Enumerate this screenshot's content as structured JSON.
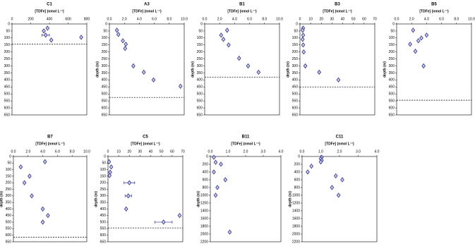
{
  "chart_data": [
    {
      "type": "scatter",
      "title": "C1",
      "x_label": "[TDFe] (nmol L⁻¹)",
      "color": "#2e3192",
      "x": [
        380,
        340,
        360,
        420,
        740
      ],
      "y": [
        30,
        50,
        80,
        115,
        95
      ],
      "xerr": [
        null,
        null,
        40,
        null,
        null
      ],
      "xlim": [
        0,
        800
      ],
      "xticks": [
        0,
        200,
        400,
        600,
        800
      ],
      "ylim": [
        0,
        650
      ],
      "yticks": [
        0,
        50,
        100,
        150,
        200,
        250,
        300,
        350,
        400,
        450,
        500,
        550,
        600,
        650
      ],
      "y_inverted": true,
      "reference_line": 145
    },
    {
      "type": "scatter",
      "title": "A3",
      "x_label": "[TDFe] (nmol L⁻¹)",
      "y_label": "depth (m)",
      "color": "#2e3192",
      "x": [
        1.0,
        1.2,
        1.8,
        2.2,
        2.1,
        3.2,
        4.6,
        5.9,
        9.5
      ],
      "y": [
        45,
        75,
        120,
        145,
        175,
        300,
        345,
        400,
        445
      ],
      "xerr": [
        null,
        null,
        null,
        null,
        null,
        null,
        null,
        null,
        null
      ],
      "xlim": [
        0,
        10
      ],
      "xticks": [
        {
          "value": 0,
          "label": "0.0"
        },
        {
          "value": 2,
          "label": "2.0"
        },
        {
          "value": 4,
          "label": "4.0"
        },
        {
          "value": 6,
          "label": "6.0"
        },
        {
          "value": 8,
          "label": "8.0"
        },
        {
          "value": 10,
          "label": "10.0"
        }
      ],
      "ylim": [
        0,
        650
      ],
      "yticks": [
        0,
        50,
        100,
        150,
        200,
        250,
        300,
        350,
        400,
        450,
        500,
        550,
        600,
        650
      ],
      "y_inverted": true,
      "reference_line": 525
    },
    {
      "type": "scatter",
      "title": "B1",
      "x_label": "[TDFe] (nmol L⁻¹)",
      "y_label": "depth (m)",
      "color": "#2e3192",
      "x": [
        3.0,
        2.2,
        2.5,
        3.2,
        4.6,
        5.8,
        7.2
      ],
      "y": [
        45,
        80,
        110,
        150,
        245,
        300,
        345
      ],
      "xerr": [
        null,
        null,
        null,
        null,
        null,
        null,
        null
      ],
      "xlim": [
        0,
        10
      ],
      "xticks": [
        {
          "value": 0,
          "label": "0.0"
        },
        {
          "value": 2,
          "label": "2.0"
        },
        {
          "value": 4,
          "label": "4.0"
        },
        {
          "value": 6,
          "label": "6.0"
        },
        {
          "value": 8,
          "label": "8.0"
        },
        {
          "value": 10,
          "label": "10.0"
        }
      ],
      "ylim": [
        0,
        650
      ],
      "yticks": [
        0,
        50,
        100,
        150,
        200,
        250,
        300,
        350,
        400,
        450,
        500,
        550,
        600,
        650
      ],
      "y_inverted": true,
      "reference_line": 380
    },
    {
      "type": "scatter",
      "title": "B3",
      "x_label": "[TDFe] (nmol L⁻¹)",
      "y_label": "depth (m)",
      "color": "#2e3192",
      "x": [
        3,
        2.5,
        3,
        2.5,
        3,
        3.5,
        5,
        18,
        36
      ],
      "y": [
        30,
        45,
        80,
        110,
        150,
        200,
        300,
        345,
        400
      ],
      "xerr": [
        null,
        null,
        null,
        null,
        null,
        null,
        null,
        null,
        null
      ],
      "xlim": [
        0,
        70
      ],
      "xticks": [
        0,
        10,
        20,
        30,
        40,
        50,
        60,
        70
      ],
      "ylim": [
        0,
        650
      ],
      "yticks": [
        0,
        50,
        100,
        150,
        200,
        250,
        300,
        350,
        400,
        450,
        500,
        550,
        600,
        650
      ],
      "y_inverted": true,
      "reference_line": 450
    },
    {
      "type": "scatter",
      "title": "B5",
      "x_label": "[TDFe] (nmol L⁻¹)",
      "y_label": "depth (m)",
      "color": "#2e3192",
      "x": [
        2.2,
        4.0,
        3.3,
        2.9,
        1.8,
        2.5,
        3.6
      ],
      "y": [
        45,
        80,
        100,
        120,
        145,
        195,
        300
      ],
      "xerr": [
        null,
        null,
        null,
        null,
        null,
        null,
        null
      ],
      "xlim": [
        0,
        10
      ],
      "xticks": [
        {
          "value": 0,
          "label": "0.0"
        },
        {
          "value": 2,
          "label": "2.0"
        },
        {
          "value": 4,
          "label": "4.0"
        },
        {
          "value": 6,
          "label": "6.0"
        },
        {
          "value": 8,
          "label": "8.0"
        },
        {
          "value": 10,
          "label": "10.0"
        }
      ],
      "ylim": [
        0,
        650
      ],
      "yticks": [
        0,
        50,
        100,
        150,
        200,
        250,
        300,
        350,
        400,
        450,
        500,
        550,
        600,
        650
      ],
      "y_inverted": true,
      "reference_line": 545
    },
    {
      "type": "scatter",
      "title": "B7",
      "x_label": "[TDFe] (nmol L⁻¹)",
      "y_label": "depth (m)",
      "color": "#2e3192",
      "x": [
        1.0,
        4.3,
        2.2,
        1.5,
        2.5,
        4.0,
        4.7,
        4.0
      ],
      "y": [
        80,
        40,
        150,
        200,
        300,
        400,
        450,
        500
      ],
      "xerr": [
        null,
        null,
        null,
        null,
        null,
        null,
        null,
        null
      ],
      "xlim": [
        0,
        10
      ],
      "xticks": [
        {
          "value": 0,
          "label": "0.0"
        },
        {
          "value": 2,
          "label": "2.0"
        },
        {
          "value": 4,
          "label": "4.0"
        },
        {
          "value": 6,
          "label": "6.0"
        },
        {
          "value": 8,
          "label": "8.0"
        },
        {
          "value": 10,
          "label": "10.0"
        }
      ],
      "ylim": [
        0,
        650
      ],
      "yticks": [
        0,
        50,
        100,
        150,
        200,
        250,
        300,
        350,
        400,
        450,
        500,
        550,
        600,
        650
      ],
      "y_inverted": true,
      "reference_line": 615
    },
    {
      "type": "scatter",
      "title": "C5",
      "x_label": "[TDFe] (nmol L⁻¹)",
      "y_label": "depth (m)",
      "color": "#2e3192",
      "x": [
        1,
        3,
        2,
        1.5,
        20,
        19,
        17,
        52,
        67
      ],
      "y": [
        40,
        80,
        120,
        145,
        200,
        300,
        400,
        500,
        450
      ],
      "xerr": [
        null,
        null,
        null,
        null,
        5,
        3,
        null,
        8,
        null
      ],
      "xlim": [
        0,
        70
      ],
      "xticks": [
        0,
        10,
        20,
        30,
        40,
        50,
        60,
        70
      ],
      "ylim": [
        0,
        650
      ],
      "yticks": [
        0,
        50,
        100,
        150,
        200,
        250,
        300,
        350,
        400,
        450,
        500,
        550,
        600,
        650
      ],
      "y_inverted": true,
      "reference_line": 545
    },
    {
      "type": "scatter",
      "title": "B11",
      "x_label": "[TDFe] (nmol L⁻¹)",
      "y_label": "depth (m)",
      "color": "#2e3192",
      "x": [
        0.2,
        0.3,
        0.6,
        0.2,
        0.85,
        0.4,
        0.3,
        1.1
      ],
      "y": [
        20,
        150,
        200,
        400,
        600,
        800,
        1000,
        1950
      ],
      "xerr": [
        null,
        null,
        null,
        null,
        null,
        null,
        null,
        null
      ],
      "xlim": [
        0,
        4
      ],
      "xticks": [
        {
          "value": 0,
          "label": "0.0"
        },
        {
          "value": 1,
          "label": "1.0"
        },
        {
          "value": 2,
          "label": "2.0"
        },
        {
          "value": 3,
          "label": "3.0"
        },
        {
          "value": 4,
          "label": "4.0"
        }
      ],
      "ylim": [
        0,
        2200
      ],
      "yticks": [
        0,
        200,
        400,
        600,
        800,
        1000,
        1200,
        1400,
        1600,
        1800,
        2000,
        2200
      ],
      "y_inverted": true
    },
    {
      "type": "scatter",
      "title": "C11",
      "x_label": "[TDFe] (nmol L⁻¹)",
      "y_label": "depth (m)",
      "color": "#2e3192",
      "x": [
        1.05,
        1.0,
        1.05,
        1.0,
        0.5,
        0.3,
        1.8,
        2.15,
        1.6,
        1.95
      ],
      "y": [
        20,
        60,
        100,
        140,
        250,
        400,
        500,
        600,
        800,
        1000
      ],
      "xerr": [
        null,
        null,
        null,
        null,
        null,
        null,
        null,
        null,
        null,
        null
      ],
      "xlim": [
        0,
        4
      ],
      "xticks": [
        {
          "value": 0,
          "label": "0.0"
        },
        {
          "value": 1,
          "label": "1.0"
        },
        {
          "value": 2,
          "label": "2.0"
        },
        {
          "value": 3,
          "label": "3.0"
        },
        {
          "value": 4,
          "label": "4.0"
        }
      ],
      "ylim": [
        0,
        2200
      ],
      "yticks": [
        0,
        200,
        400,
        600,
        800,
        1000,
        1200,
        1400,
        1600,
        1800,
        2000,
        2200
      ],
      "y_inverted": true
    }
  ]
}
